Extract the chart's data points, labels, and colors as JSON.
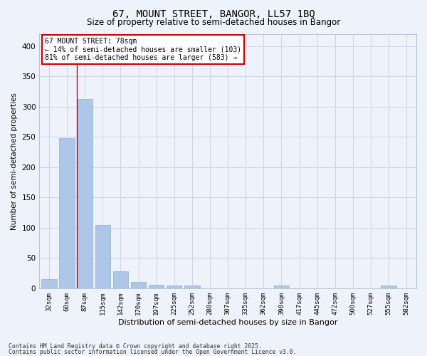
{
  "title": "67, MOUNT STREET, BANGOR, LL57 1BQ",
  "subtitle": "Size of property relative to semi-detached houses in Bangor",
  "xlabel": "Distribution of semi-detached houses by size in Bangor",
  "ylabel": "Number of semi-detached properties",
  "categories": [
    "32sqm",
    "60sqm",
    "87sqm",
    "115sqm",
    "142sqm",
    "170sqm",
    "197sqm",
    "225sqm",
    "252sqm",
    "280sqm",
    "307sqm",
    "335sqm",
    "362sqm",
    "390sqm",
    "417sqm",
    "445sqm",
    "472sqm",
    "500sqm",
    "527sqm",
    "555sqm",
    "582sqm"
  ],
  "values": [
    15,
    248,
    312,
    105,
    28,
    10,
    6,
    5,
    4,
    0,
    0,
    0,
    0,
    4,
    0,
    0,
    0,
    0,
    0,
    4,
    0
  ],
  "bar_color": "#aec6e8",
  "bar_edge_color": "#8ab4d4",
  "vline_x": 1.57,
  "annotation_title": "67 MOUNT STREET: 78sqm",
  "annotation_line1": "← 14% of semi-detached houses are smaller (103)",
  "annotation_line2": "81% of semi-detached houses are larger (583) →",
  "annotation_box_color": "#ffffff",
  "annotation_box_edge": "#cc0000",
  "vline_color": "#cc0000",
  "grid_color": "#ccd5e8",
  "bg_color": "#eef2fb",
  "footer_line1": "Contains HM Land Registry data © Crown copyright and database right 2025.",
  "footer_line2": "Contains public sector information licensed under the Open Government Licence v3.0.",
  "ylim": [
    0,
    420
  ],
  "yticks": [
    0,
    50,
    100,
    150,
    200,
    250,
    300,
    350,
    400
  ]
}
